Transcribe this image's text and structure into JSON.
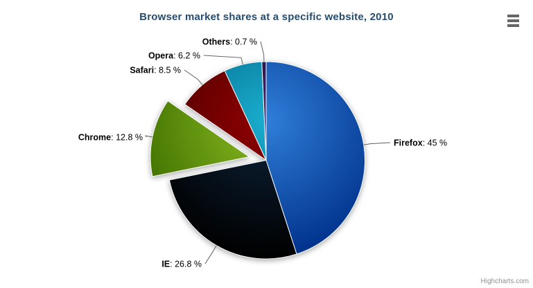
{
  "chart_data": {
    "type": "pie",
    "title": "Browser market shares at a specific website, 2010",
    "legend": "none",
    "start_angle_deg": 0,
    "direction": "clockwise",
    "label_format": "{name}: {percentage} %",
    "slices": [
      {
        "name": "Firefox",
        "percentage": 45,
        "color": "#2f7ed8",
        "sliced": false
      },
      {
        "name": "IE",
        "percentage": 26.8,
        "color": "#0d233a",
        "sliced": false
      },
      {
        "name": "Chrome",
        "percentage": 12.8,
        "color": "#8bbc21",
        "sliced": true
      },
      {
        "name": "Safari",
        "percentage": 8.5,
        "color": "#910000",
        "sliced": false
      },
      {
        "name": "Opera",
        "percentage": 6.2,
        "color": "#1aadce",
        "sliced": false
      },
      {
        "name": "Others",
        "percentage": 0.7,
        "color": "#492970",
        "sliced": false
      }
    ],
    "style": {
      "title_color": "#274b6d",
      "label_color": "#000000",
      "connector_color": "#606060",
      "slice_border_color": "#ffffff"
    }
  },
  "export_menu": {
    "icon": "hamburger-menu-icon"
  },
  "credits": {
    "label": "Highcharts.com"
  }
}
